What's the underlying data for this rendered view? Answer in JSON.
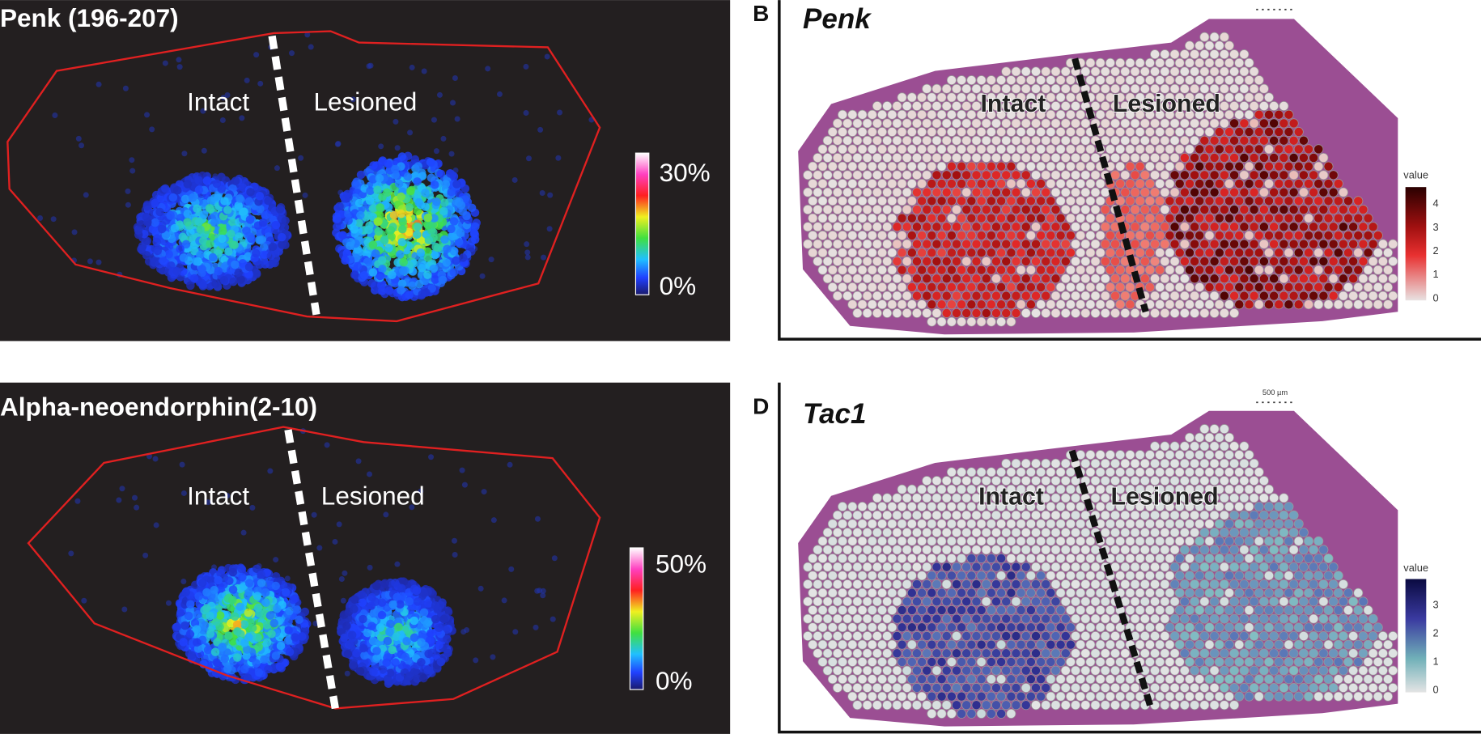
{
  "panels": [
    {
      "title": "Penk (196-207)",
      "labels": [
        "Intact",
        "Lesioned"
      ],
      "colorbar_ticks": [
        "30%",
        "0%"
      ]
    },
    {
      "title": "Alpha-neoendorphin(2-10)",
      "labels": [
        "Intact",
        "Lesioned"
      ],
      "colorbar_ticks": [
        "50%",
        "0%"
      ]
    },
    {
      "letter": "B",
      "title": "Penk",
      "labels": [
        "Intact",
        "Lesioned"
      ],
      "legend_title": "value",
      "colorbar_ticks": [
        "4",
        "3",
        "2",
        "1",
        "0"
      ]
    },
    {
      "letter": "D",
      "title": "Tac1",
      "scale_bar": "500 µm",
      "labels": [
        "Intact",
        "Lesioned"
      ],
      "legend_title": "value",
      "colorbar_ticks": [
        "3",
        "2",
        "1",
        "0"
      ]
    }
  ]
}
